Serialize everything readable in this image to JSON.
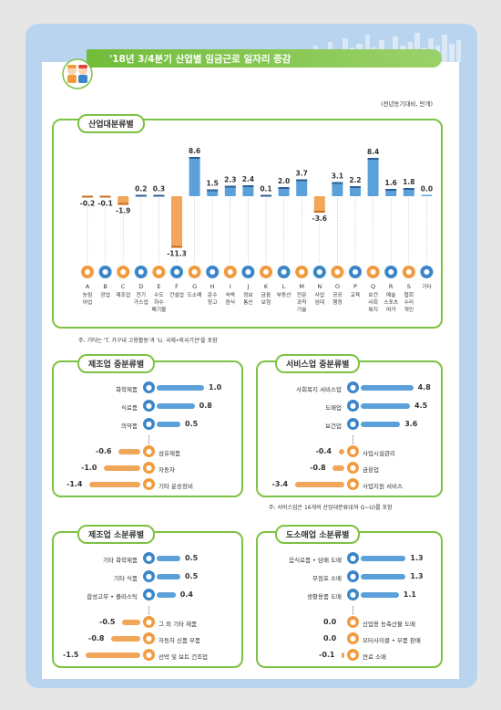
{
  "header": {
    "title": "'18년 3/4분기 산업별 임금근로 일자리 증감",
    "unit": "(전년동기대비, 만개)"
  },
  "chart_data": [
    {
      "type": "bar",
      "title": "산업대분류별",
      "note": "주: 기타는 'T. 가구내 고용활동'과 'U. 국제•외국기관'을 포함",
      "categories": [
        {
          "code": "A",
          "name": [
            "농림",
            "어업"
          ]
        },
        {
          "code": "B",
          "name": [
            "광업"
          ]
        },
        {
          "code": "C",
          "name": [
            "제조업"
          ]
        },
        {
          "code": "D",
          "name": [
            "전기",
            "가스업"
          ]
        },
        {
          "code": "E",
          "name": [
            "수도",
            "하수",
            "폐기물"
          ]
        },
        {
          "code": "F",
          "name": [
            "건설업"
          ]
        },
        {
          "code": "G",
          "name": [
            "도소매"
          ]
        },
        {
          "code": "H",
          "name": [
            "운수",
            "창고"
          ]
        },
        {
          "code": "I",
          "name": [
            "숙박",
            "음식"
          ]
        },
        {
          "code": "J",
          "name": [
            "정보",
            "통신"
          ]
        },
        {
          "code": "K",
          "name": [
            "금융",
            "보험"
          ]
        },
        {
          "code": "L",
          "name": [
            "부동산"
          ]
        },
        {
          "code": "M",
          "name": [
            "전문",
            "과학",
            "기술"
          ]
        },
        {
          "code": "N",
          "name": [
            "사업",
            "임대"
          ]
        },
        {
          "code": "O",
          "name": [
            "공공",
            "행정"
          ]
        },
        {
          "code": "P",
          "name": [
            "교육"
          ]
        },
        {
          "code": "Q",
          "name": [
            "보건",
            "사회",
            "복지"
          ]
        },
        {
          "code": "R",
          "name": [
            "예술",
            "스포츠",
            "여가"
          ]
        },
        {
          "code": "S",
          "name": [
            "협회",
            "수리",
            "개인"
          ]
        },
        {
          "code": "",
          "name": [
            "기타"
          ]
        }
      ],
      "values": [
        -0.2,
        -0.1,
        -1.9,
        0.2,
        0.3,
        -11.3,
        8.6,
        1.5,
        2.3,
        2.4,
        0.1,
        2.0,
        3.7,
        -3.6,
        3.1,
        2.2,
        8.4,
        1.6,
        1.8,
        0.0
      ],
      "value_labels": [
        "-0.2",
        "-0.1",
        "-1.9",
        "0.2",
        "0.3",
        "-11.3",
        "8.6",
        "1.5",
        "2.3",
        "2.4",
        "0.1",
        "2.0",
        "3.7",
        "-3.6",
        "3.1",
        "2.2",
        "8.4",
        "1.6",
        "1.8",
        "0.0"
      ],
      "colors": {
        "positive": "#5ba0d8",
        "negative": "#f2a65a"
      }
    },
    {
      "type": "bar",
      "title": "제조업 중분류별",
      "top": [
        {
          "label": "화학제품",
          "value": 1.0,
          "text": "1.0"
        },
        {
          "label": "식료품",
          "value": 0.8,
          "text": "0.8"
        },
        {
          "label": "의약품",
          "value": 0.5,
          "text": "0.5"
        }
      ],
      "bottom": [
        {
          "label": "섬유제품",
          "value": -0.6,
          "text": "-0.6"
        },
        {
          "label": "자동차",
          "value": -1.0,
          "text": "-1.0"
        },
        {
          "label": "기타 운송장비",
          "value": -1.4,
          "text": "-1.4"
        }
      ]
    },
    {
      "type": "bar",
      "title": "서비스업 중분류별",
      "note": "주: 서비스업은 16개의 산업대분류(E와 G~U)를 포함",
      "top": [
        {
          "label": "사회복지 서비스업",
          "value": 4.8,
          "text": "4.8"
        },
        {
          "label": "도매업",
          "value": 4.5,
          "text": "4.5"
        },
        {
          "label": "보건업",
          "value": 3.6,
          "text": "3.6"
        }
      ],
      "bottom": [
        {
          "label": "사업시설관리",
          "value": -0.4,
          "text": "-0.4"
        },
        {
          "label": "금융업",
          "value": -0.8,
          "text": "-0.8"
        },
        {
          "label": "사업지원 서비스",
          "value": -3.4,
          "text": "-3.4"
        }
      ]
    },
    {
      "type": "bar",
      "title": "제조업 소분류별",
      "top": [
        {
          "label": "기타 화학제품",
          "value": 0.5,
          "text": "0.5"
        },
        {
          "label": "기타 식품",
          "value": 0.5,
          "text": "0.5"
        },
        {
          "label": "합성고무 • 플라스틱",
          "value": 0.4,
          "text": "0.4"
        }
      ],
      "bottom": [
        {
          "label": "그 외 기타 제품",
          "value": -0.5,
          "text": "-0.5"
        },
        {
          "label": "자동차 신품 부품",
          "value": -0.8,
          "text": "-0.8"
        },
        {
          "label": "선박 및 보트 건조업",
          "value": -1.5,
          "text": "-1.5"
        }
      ]
    },
    {
      "type": "bar",
      "title": "도소매업 소분류별",
      "top": [
        {
          "label": "음식료품 • 담배 도매",
          "value": 1.3,
          "text": "1.3"
        },
        {
          "label": "무점포 소매",
          "value": 1.3,
          "text": "1.3"
        },
        {
          "label": "생활용품 도매",
          "value": 1.1,
          "text": "1.1"
        }
      ],
      "bottom": [
        {
          "label": "산업용 농축산물 도매",
          "value": 0.0,
          "text": "0.0"
        },
        {
          "label": "모터사이클 • 부품 판매",
          "value": 0.0,
          "text": "0.0"
        },
        {
          "label": "연료 소매",
          "value": -0.1,
          "text": "-0.1"
        }
      ]
    }
  ]
}
